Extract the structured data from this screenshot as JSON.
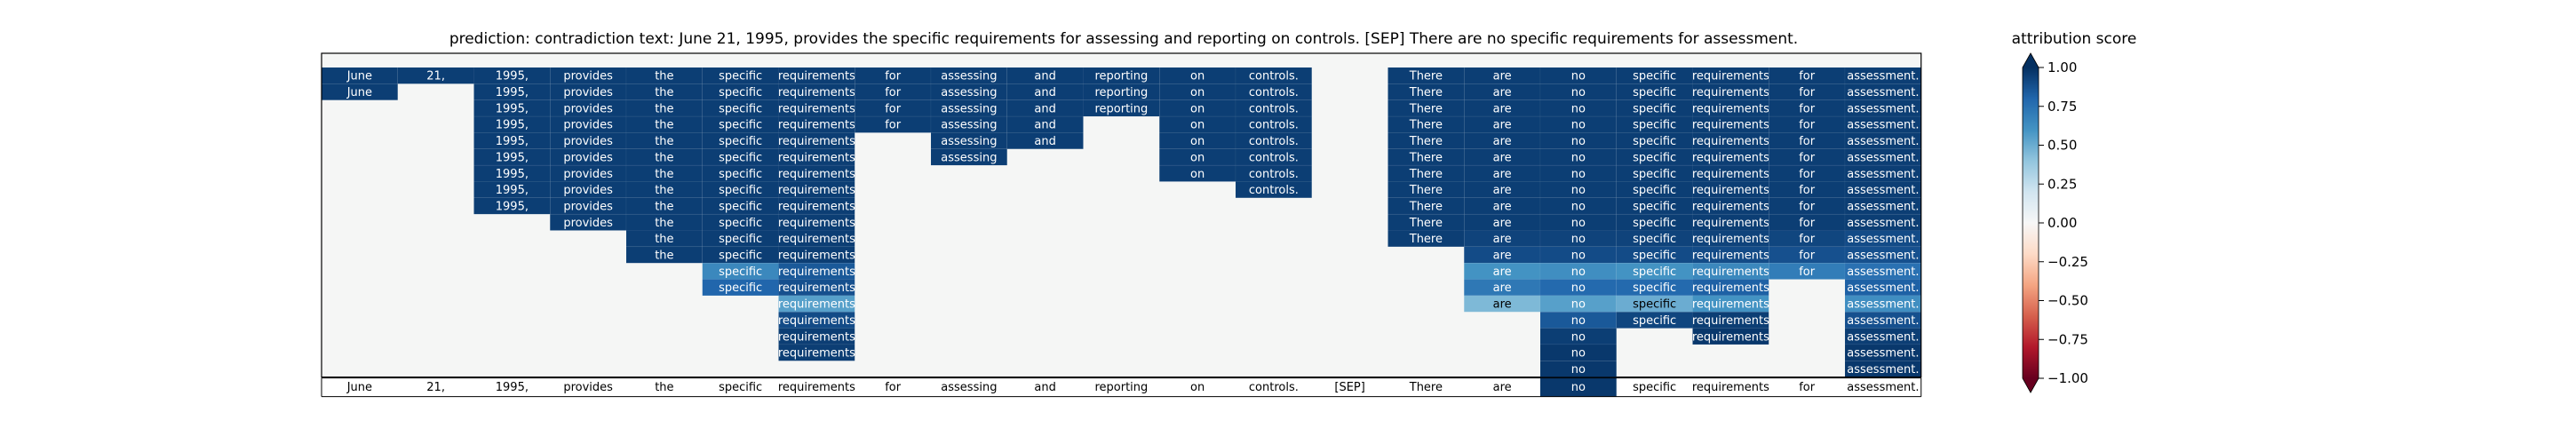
{
  "chart_data": {
    "type": "heatmap",
    "title": "prediction:  contradiction      text:  June 21, 1995, provides the specific requirements for assessing and reporting on controls. [SEP] There are no specific requirements for assessment.",
    "colorbar_title": "attribution score",
    "colorbar_ticks": [
      "1.00",
      "0.75",
      "0.50",
      "0.25",
      "0.00",
      "−0.25",
      "−0.50",
      "−0.75",
      "−1.00"
    ],
    "vmin": -1.0,
    "vmax": 1.0,
    "colormap": [
      "#67001f",
      "#b2182b",
      "#d6604d",
      "#f4a582",
      "#fddbc7",
      "#f7f7f7",
      "#d1e5f0",
      "#92c5de",
      "#4393c3",
      "#2166ac",
      "#053061"
    ],
    "background_color": "#f5f6f5",
    "tokens": [
      "June",
      "21,",
      "1995,",
      "provides",
      "the",
      "specific",
      "requirements",
      "for",
      "assessing",
      "and",
      "reporting",
      "on",
      "controls.",
      "[SEP]",
      "There",
      "are",
      "no",
      "specific",
      "requirements",
      "for",
      "assessment."
    ],
    "cells": [
      [
        [
          0,
          0.95
        ],
        [
          1,
          0.95
        ],
        [
          2,
          0.95
        ],
        [
          3,
          0.95
        ],
        [
          4,
          0.95
        ],
        [
          5,
          0.95
        ],
        [
          6,
          0.95
        ],
        [
          7,
          0.95
        ],
        [
          8,
          0.95
        ],
        [
          9,
          0.95
        ],
        [
          10,
          0.95
        ],
        [
          11,
          0.95
        ],
        [
          12,
          0.95
        ],
        [
          14,
          0.95
        ],
        [
          15,
          0.95
        ],
        [
          16,
          0.95
        ],
        [
          17,
          0.95
        ],
        [
          18,
          0.95
        ],
        [
          19,
          0.95
        ],
        [
          20,
          0.95
        ]
      ],
      [
        [
          0,
          0.95
        ],
        [
          2,
          0.95
        ],
        [
          3,
          0.95
        ],
        [
          4,
          0.95
        ],
        [
          5,
          0.95
        ],
        [
          6,
          0.95
        ],
        [
          7,
          0.95
        ],
        [
          8,
          0.95
        ],
        [
          9,
          0.95
        ],
        [
          10,
          0.95
        ],
        [
          11,
          0.95
        ],
        [
          12,
          0.95
        ],
        [
          14,
          0.95
        ],
        [
          15,
          0.95
        ],
        [
          16,
          0.95
        ],
        [
          17,
          0.95
        ],
        [
          18,
          0.95
        ],
        [
          19,
          0.95
        ],
        [
          20,
          0.95
        ]
      ],
      [
        [
          2,
          0.95
        ],
        [
          3,
          0.95
        ],
        [
          4,
          0.95
        ],
        [
          5,
          0.95
        ],
        [
          6,
          0.95
        ],
        [
          7,
          0.95
        ],
        [
          8,
          0.95
        ],
        [
          9,
          0.95
        ],
        [
          10,
          0.95
        ],
        [
          11,
          0.95
        ],
        [
          12,
          0.95
        ],
        [
          14,
          0.95
        ],
        [
          15,
          0.95
        ],
        [
          16,
          0.95
        ],
        [
          17,
          0.95
        ],
        [
          18,
          0.95
        ],
        [
          19,
          0.95
        ],
        [
          20,
          0.95
        ]
      ],
      [
        [
          2,
          0.95
        ],
        [
          3,
          0.95
        ],
        [
          4,
          0.95
        ],
        [
          5,
          0.95
        ],
        [
          6,
          0.95
        ],
        [
          7,
          0.95
        ],
        [
          8,
          0.95
        ],
        [
          9,
          0.95
        ],
        [
          11,
          0.95
        ],
        [
          12,
          0.95
        ],
        [
          14,
          0.95
        ],
        [
          15,
          0.95
        ],
        [
          16,
          0.95
        ],
        [
          17,
          0.95
        ],
        [
          18,
          0.95
        ],
        [
          19,
          0.95
        ],
        [
          20,
          0.95
        ]
      ],
      [
        [
          2,
          0.95
        ],
        [
          3,
          0.95
        ],
        [
          4,
          0.95
        ],
        [
          5,
          0.95
        ],
        [
          6,
          0.95
        ],
        [
          8,
          0.95
        ],
        [
          9,
          0.95
        ],
        [
          11,
          0.95
        ],
        [
          12,
          0.95
        ],
        [
          14,
          0.95
        ],
        [
          15,
          0.95
        ],
        [
          16,
          0.95
        ],
        [
          17,
          0.95
        ],
        [
          18,
          0.95
        ],
        [
          19,
          0.95
        ],
        [
          20,
          0.95
        ]
      ],
      [
        [
          2,
          0.95
        ],
        [
          3,
          0.95
        ],
        [
          4,
          0.95
        ],
        [
          5,
          0.95
        ],
        [
          6,
          0.95
        ],
        [
          8,
          0.95
        ],
        [
          11,
          0.95
        ],
        [
          12,
          0.95
        ],
        [
          14,
          0.95
        ],
        [
          15,
          0.95
        ],
        [
          16,
          0.95
        ],
        [
          17,
          0.95
        ],
        [
          18,
          0.95
        ],
        [
          19,
          0.95
        ],
        [
          20,
          0.95
        ]
      ],
      [
        [
          2,
          0.95
        ],
        [
          3,
          0.95
        ],
        [
          4,
          0.95
        ],
        [
          5,
          0.95
        ],
        [
          6,
          0.95
        ],
        [
          11,
          0.95
        ],
        [
          12,
          0.95
        ],
        [
          14,
          0.95
        ],
        [
          15,
          0.95
        ],
        [
          16,
          0.95
        ],
        [
          17,
          0.95
        ],
        [
          18,
          0.95
        ],
        [
          19,
          0.95
        ],
        [
          20,
          0.95
        ]
      ],
      [
        [
          2,
          0.95
        ],
        [
          3,
          0.95
        ],
        [
          4,
          0.95
        ],
        [
          5,
          0.95
        ],
        [
          6,
          0.95
        ],
        [
          12,
          0.95
        ],
        [
          14,
          0.95
        ],
        [
          15,
          0.95
        ],
        [
          16,
          0.95
        ],
        [
          17,
          0.95
        ],
        [
          18,
          0.95
        ],
        [
          19,
          0.95
        ],
        [
          20,
          0.95
        ]
      ],
      [
        [
          2,
          0.95
        ],
        [
          3,
          0.95
        ],
        [
          4,
          0.95
        ],
        [
          5,
          0.95
        ],
        [
          6,
          0.95
        ],
        [
          14,
          0.95
        ],
        [
          15,
          0.95
        ],
        [
          16,
          0.95
        ],
        [
          17,
          0.95
        ],
        [
          18,
          0.95
        ],
        [
          19,
          0.95
        ],
        [
          20,
          0.95
        ]
      ],
      [
        [
          3,
          0.95
        ],
        [
          4,
          0.95
        ],
        [
          5,
          0.95
        ],
        [
          6,
          0.95
        ],
        [
          14,
          0.95
        ],
        [
          15,
          0.95
        ],
        [
          16,
          0.95
        ],
        [
          17,
          0.95
        ],
        [
          18,
          0.95
        ],
        [
          19,
          0.95
        ],
        [
          20,
          0.95
        ]
      ],
      [
        [
          4,
          0.95
        ],
        [
          5,
          0.95
        ],
        [
          6,
          0.95
        ],
        [
          14,
          0.95
        ],
        [
          15,
          0.93
        ],
        [
          16,
          0.93
        ],
        [
          17,
          0.93
        ],
        [
          18,
          0.93
        ],
        [
          19,
          0.92
        ],
        [
          20,
          0.9
        ]
      ],
      [
        [
          4,
          0.95
        ],
        [
          5,
          0.95
        ],
        [
          6,
          0.95
        ],
        [
          15,
          0.9
        ],
        [
          16,
          0.9
        ],
        [
          17,
          0.9
        ],
        [
          18,
          0.9
        ],
        [
          19,
          0.88
        ],
        [
          20,
          0.88
        ]
      ],
      [
        [
          5,
          0.65
        ],
        [
          6,
          0.85
        ],
        [
          15,
          0.6
        ],
        [
          16,
          0.62
        ],
        [
          17,
          0.6
        ],
        [
          18,
          0.65
        ],
        [
          19,
          0.7
        ],
        [
          20,
          0.75
        ]
      ],
      [
        [
          5,
          0.8
        ],
        [
          6,
          0.88
        ],
        [
          15,
          0.72
        ],
        [
          16,
          0.78
        ],
        [
          17,
          0.78
        ],
        [
          18,
          0.82
        ],
        [
          20,
          0.82
        ]
      ],
      [
        [
          6,
          0.55
        ],
        [
          15,
          0.45
        ],
        [
          16,
          0.55
        ],
        [
          17,
          0.5
        ],
        [
          18,
          0.6
        ],
        [
          20,
          0.62
        ]
      ],
      [
        [
          6,
          0.9
        ],
        [
          16,
          0.85
        ],
        [
          17,
          0.92
        ],
        [
          18,
          0.95
        ],
        [
          20,
          0.88
        ]
      ],
      [
        [
          6,
          0.95
        ],
        [
          16,
          0.95
        ],
        [
          18,
          0.97
        ],
        [
          20,
          0.95
        ]
      ],
      [
        [
          6,
          0.95
        ],
        [
          16,
          0.97
        ],
        [
          20,
          0.97
        ]
      ],
      [
        [
          16,
          0.97
        ],
        [
          20,
          0.97
        ]
      ]
    ],
    "bottom_highlight": [
      [
        16,
        0.97
      ]
    ]
  }
}
